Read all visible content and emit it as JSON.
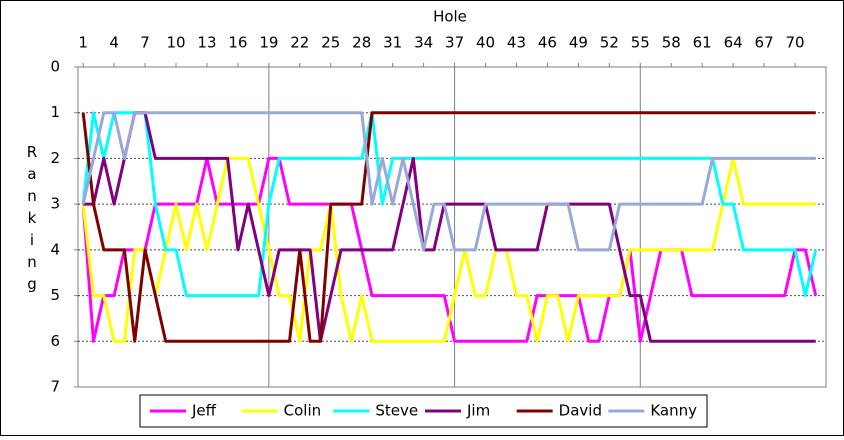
{
  "chart_data": {
    "type": "line",
    "x_label": "Hole",
    "y_label": "Ranking",
    "x": [
      1,
      2,
      3,
      4,
      5,
      6,
      7,
      8,
      9,
      10,
      11,
      12,
      13,
      14,
      15,
      16,
      17,
      18,
      19,
      20,
      21,
      22,
      23,
      24,
      25,
      26,
      27,
      28,
      29,
      30,
      31,
      32,
      33,
      34,
      35,
      36,
      37,
      38,
      39,
      40,
      41,
      42,
      43,
      44,
      45,
      46,
      47,
      48,
      49,
      50,
      51,
      52,
      53,
      54,
      55,
      56,
      57,
      58,
      59,
      60,
      61,
      62,
      63,
      64,
      65,
      66,
      67,
      68,
      69,
      70,
      71,
      72
    ],
    "xlim": [
      0.5,
      73
    ],
    "xticks": [
      1,
      4,
      7,
      10,
      13,
      16,
      19,
      22,
      25,
      28,
      31,
      34,
      37,
      40,
      43,
      46,
      49,
      52,
      55,
      58,
      61,
      64,
      67,
      70
    ],
    "x_grid_lines": [
      19,
      37,
      55
    ],
    "ylim": [
      0,
      7
    ],
    "yticks": [
      0,
      1,
      2,
      3,
      4,
      5,
      6,
      7
    ],
    "y_reversed": true,
    "grid": true,
    "series": [
      {
        "name": "Jeff",
        "color": "#ff00ff",
        "values": [
          3,
          6,
          5,
          5,
          4,
          4,
          4,
          3,
          3,
          3,
          3,
          3,
          2,
          3,
          3,
          3,
          3,
          3,
          2,
          2,
          3,
          3,
          3,
          3,
          3,
          3,
          3,
          4,
          5,
          5,
          5,
          5,
          5,
          5,
          5,
          5,
          6,
          6,
          6,
          6,
          6,
          6,
          6,
          6,
          5,
          5,
          5,
          5,
          5,
          6,
          6,
          5,
          5,
          4,
          6,
          5,
          4,
          4,
          4,
          5,
          5,
          5,
          5,
          5,
          5,
          5,
          5,
          5,
          5,
          4,
          4,
          5
        ]
      },
      {
        "name": "Colin",
        "color": "#ffff00",
        "values": [
          3,
          5,
          5,
          6,
          6,
          4,
          4,
          5,
          4,
          3,
          4,
          3,
          4,
          3,
          2,
          2,
          2,
          3,
          4,
          5,
          5,
          6,
          4,
          4,
          3,
          5,
          6,
          5,
          6,
          6,
          6,
          6,
          6,
          6,
          6,
          6,
          5,
          4,
          5,
          5,
          4,
          4,
          5,
          5,
          6,
          5,
          5,
          6,
          5,
          5,
          5,
          5,
          5,
          4,
          4,
          4,
          4,
          4,
          4,
          4,
          4,
          4,
          3,
          2,
          3,
          3,
          3,
          3,
          3,
          3,
          3,
          3
        ]
      },
      {
        "name": "Steve",
        "color": "#00ffff",
        "values": [
          3,
          1,
          2,
          1,
          1,
          1,
          1,
          3,
          4,
          4,
          5,
          5,
          5,
          5,
          5,
          5,
          5,
          5,
          3,
          2,
          2,
          2,
          2,
          2,
          2,
          2,
          2,
          2,
          1,
          3,
          2,
          2,
          2,
          2,
          2,
          2,
          2,
          2,
          2,
          2,
          2,
          2,
          2,
          2,
          2,
          2,
          2,
          2,
          2,
          2,
          2,
          2,
          2,
          2,
          2,
          2,
          2,
          2,
          2,
          2,
          2,
          2,
          3,
          3,
          4,
          4,
          4,
          4,
          4,
          4,
          5,
          4
        ]
      },
      {
        "name": "Jim",
        "color": "#800080",
        "values": [
          3,
          3,
          2,
          3,
          2,
          1,
          1,
          2,
          2,
          2,
          2,
          2,
          2,
          2,
          2,
          4,
          3,
          4,
          5,
          4,
          4,
          4,
          4,
          6,
          5,
          4,
          4,
          4,
          4,
          4,
          4,
          3,
          2,
          4,
          4,
          3,
          3,
          3,
          3,
          3,
          4,
          4,
          4,
          4,
          4,
          3,
          3,
          3,
          3,
          3,
          3,
          3,
          4,
          5,
          5,
          6,
          6,
          6,
          6,
          6,
          6,
          6,
          6,
          6,
          6,
          6,
          6,
          6,
          6,
          6,
          6,
          6
        ]
      },
      {
        "name": "David",
        "color": "#800000",
        "values": [
          1,
          3,
          4,
          4,
          4,
          6,
          4,
          5,
          6,
          6,
          6,
          6,
          6,
          6,
          6,
          6,
          6,
          6,
          6,
          6,
          6,
          4,
          6,
          6,
          3,
          3,
          3,
          3,
          1,
          1,
          1,
          1,
          1,
          1,
          1,
          1,
          1,
          1,
          1,
          1,
          1,
          1,
          1,
          1,
          1,
          1,
          1,
          1,
          1,
          1,
          1,
          1,
          1,
          1,
          1,
          1,
          1,
          1,
          1,
          1,
          1,
          1,
          1,
          1,
          1,
          1,
          1,
          1,
          1,
          1,
          1,
          1
        ]
      },
      {
        "name": "Kanny",
        "color": "#99a8d8",
        "values": [
          3,
          2,
          1,
          1,
          2,
          1,
          1,
          1,
          1,
          1,
          1,
          1,
          1,
          1,
          1,
          1,
          1,
          1,
          1,
          1,
          1,
          1,
          1,
          1,
          1,
          1,
          1,
          1,
          3,
          2,
          3,
          2,
          3,
          4,
          3,
          3,
          4,
          4,
          4,
          3,
          3,
          3,
          3,
          3,
          3,
          3,
          3,
          3,
          4,
          4,
          4,
          4,
          3,
          3,
          3,
          3,
          3,
          3,
          3,
          3,
          3,
          2,
          2,
          2,
          2,
          2,
          2,
          2,
          2,
          2,
          2,
          2
        ]
      }
    ]
  }
}
